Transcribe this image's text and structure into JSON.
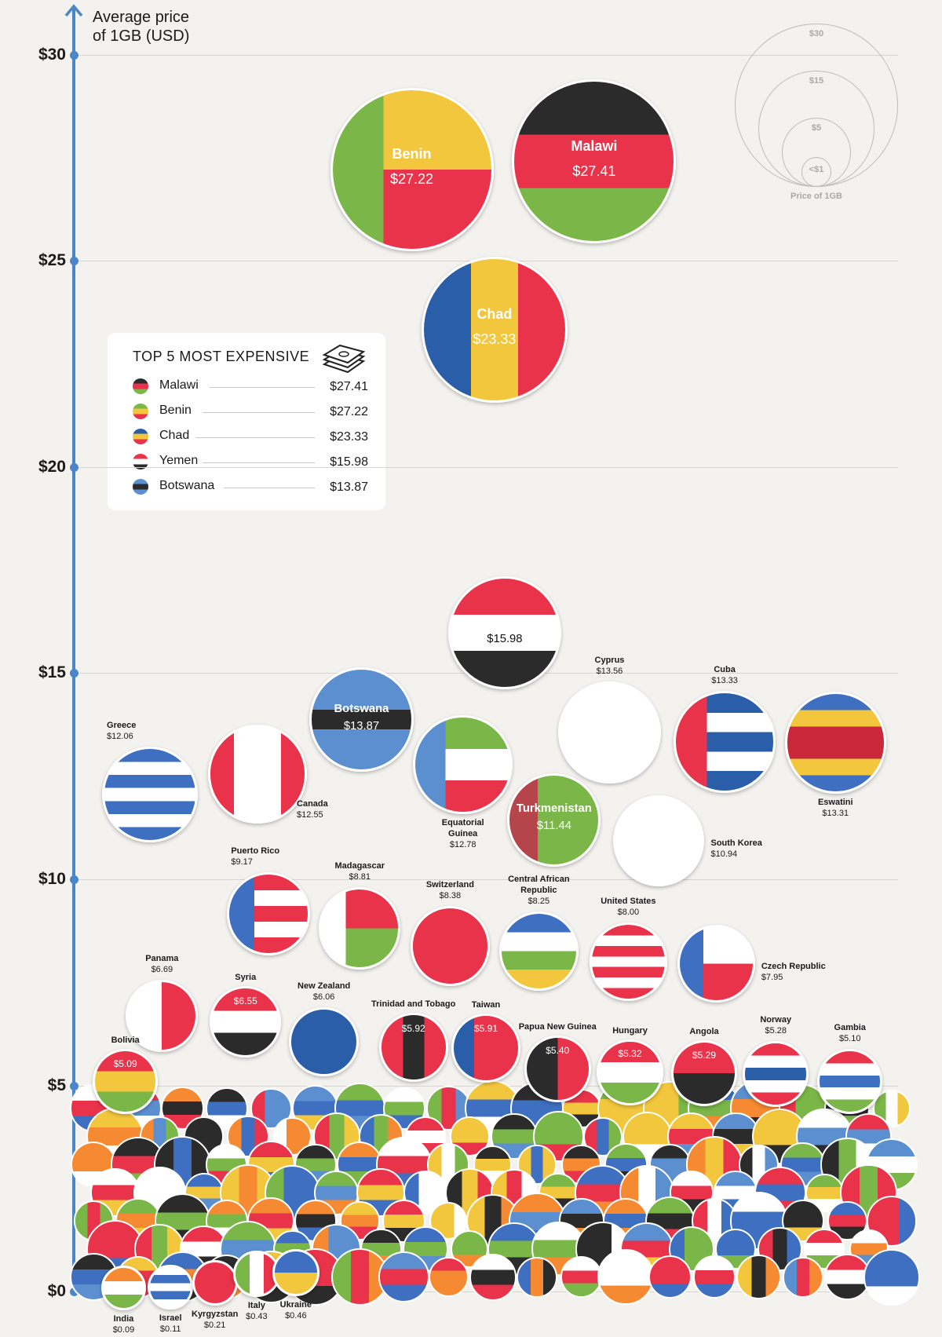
{
  "axis": {
    "title_line1": "Average price",
    "title_line2": "of 1GB (USD)",
    "ticks": [
      "$0",
      "$5",
      "$10",
      "$15",
      "$20",
      "$25",
      "$30"
    ],
    "color": "#4a86c8"
  },
  "size_legend": {
    "title": "Price of 1GB",
    "labels": [
      "$30",
      "$15",
      "$5",
      "<$1"
    ]
  },
  "top5": {
    "title": "TOP 5 MOST EXPENSIVE",
    "icon": "money-stack-icon",
    "rows": [
      {
        "name": "Malawi",
        "value": "$27.41",
        "colors": [
          "#2b2b2b",
          "#e8334a",
          "#7ab648"
        ]
      },
      {
        "name": "Benin",
        "value": "$27.22",
        "colors": [
          "#7ab648",
          "#f2c73d",
          "#e8334a"
        ]
      },
      {
        "name": "Chad",
        "value": "$23.33",
        "colors": [
          "#2b5ea8",
          "#f2c73d",
          "#e8334a"
        ]
      },
      {
        "name": "Yemen",
        "value": "$15.98",
        "colors": [
          "#e8334a",
          "#ffffff",
          "#2b2b2b"
        ]
      },
      {
        "name": "Botswana",
        "value": "$13.87",
        "colors": [
          "#5b8fd0",
          "#2b2b2b",
          "#5b8fd0"
        ]
      }
    ]
  },
  "chart_data": {
    "type": "scatter",
    "title": "",
    "ylabel": "Average price of 1GB (USD)",
    "ylim": [
      0,
      30
    ],
    "yticks": [
      0,
      5,
      10,
      15,
      20,
      25,
      30
    ],
    "grid": true,
    "bubble_size": "price",
    "points": [
      {
        "name": "Malawi",
        "value": 27.41,
        "label": "$27.41",
        "flag": {
          "dir": "h",
          "stripes": [
            "#2b2b2b",
            "#e8334a",
            "#7ab648"
          ]
        }
      },
      {
        "name": "Benin",
        "value": 27.22,
        "label": "$27.22",
        "flag": {
          "dir": "h",
          "stripes": [
            "#f2c73d",
            "#e8334a"
          ],
          "hoist": "#7ab648"
        }
      },
      {
        "name": "Chad",
        "value": 23.33,
        "label": "$23.33",
        "flag": {
          "dir": "v",
          "stripes": [
            "#2b5ea8",
            "#f2c73d",
            "#e8334a"
          ]
        }
      },
      {
        "name": "Yemen",
        "value": 15.98,
        "label": "$15.98",
        "flag": {
          "dir": "h",
          "stripes": [
            "#e8334a",
            "#ffffff",
            "#2b2b2b"
          ]
        }
      },
      {
        "name": "Botswana",
        "value": 13.87,
        "label": "$13.87",
        "flag": {
          "dir": "h",
          "stripes": [
            "#5b8fd0",
            "#5b8fd0",
            "#2b2b2b",
            "#5b8fd0",
            "#5b8fd0"
          ]
        }
      },
      {
        "name": "Cyprus",
        "value": 13.56,
        "label": "$13.56",
        "flag": {
          "dir": "h",
          "stripes": [
            "#ffffff"
          ]
        }
      },
      {
        "name": "Cuba",
        "value": 13.33,
        "label": "$13.33",
        "flag": {
          "dir": "h",
          "stripes": [
            "#2b5ea8",
            "#ffffff",
            "#2b5ea8",
            "#ffffff",
            "#2b5ea8"
          ],
          "hoist": "#e8334a"
        }
      },
      {
        "name": "Eswatini",
        "value": 13.31,
        "label": "$13.31",
        "flag": {
          "dir": "h",
          "stripes": [
            "#3e6fc0",
            "#f2c73d",
            "#c8283a",
            "#c8283a",
            "#f2c73d",
            "#3e6fc0"
          ]
        }
      },
      {
        "name": "Greece",
        "value": 12.06,
        "label": "$12.06",
        "flag": {
          "dir": "h",
          "stripes": [
            "#3e6fc0",
            "#ffffff",
            "#3e6fc0",
            "#ffffff",
            "#3e6fc0",
            "#ffffff",
            "#3e6fc0"
          ]
        }
      },
      {
        "name": "Canada",
        "value": 12.55,
        "label": "$12.55",
        "flag": {
          "dir": "v",
          "stripes": [
            "#e8334a",
            "#ffffff",
            "#ffffff",
            "#e8334a"
          ]
        }
      },
      {
        "name": "Equatorial Guinea",
        "value": 12.78,
        "label": "$12.78",
        "flag": {
          "dir": "h",
          "stripes": [
            "#7ab648",
            "#ffffff",
            "#e8334a"
          ],
          "hoist": "#5b8fd0"
        }
      },
      {
        "name": "Turkmenistan",
        "value": 11.44,
        "label": "$11.44",
        "flag": {
          "dir": "h",
          "stripes": [
            "#7ab648"
          ],
          "hoist": "#b5454a"
        }
      },
      {
        "name": "South Korea",
        "value": 10.94,
        "label": "$10.94",
        "flag": {
          "dir": "h",
          "stripes": [
            "#ffffff"
          ]
        }
      },
      {
        "name": "Puerto Rico",
        "value": 9.17,
        "label": "$9.17",
        "flag": {
          "dir": "h",
          "stripes": [
            "#e8334a",
            "#ffffff",
            "#e8334a",
            "#ffffff",
            "#e8334a"
          ],
          "hoist": "#3e6fc0"
        }
      },
      {
        "name": "Madagascar",
        "value": 8.81,
        "label": "$8.81",
        "flag": {
          "dir": "h",
          "stripes": [
            "#e8334a",
            "#7ab648"
          ],
          "hoist": "#ffffff"
        }
      },
      {
        "name": "Switzerland",
        "value": 8.38,
        "label": "$8.38",
        "flag": {
          "dir": "h",
          "stripes": [
            "#e8334a"
          ]
        }
      },
      {
        "name": "Central African Republic",
        "value": 8.25,
        "label": "$8.25",
        "flag": {
          "dir": "h",
          "stripes": [
            "#3e6fc0",
            "#ffffff",
            "#7ab648",
            "#f2c73d"
          ]
        }
      },
      {
        "name": "United States",
        "value": 8.0,
        "label": "$8.00",
        "flag": {
          "dir": "h",
          "stripes": [
            "#e8334a",
            "#ffffff",
            "#e8334a",
            "#ffffff",
            "#e8334a",
            "#ffffff",
            "#e8334a"
          ]
        }
      },
      {
        "name": "Czech Republic",
        "value": 7.95,
        "label": "$7.95",
        "flag": {
          "dir": "h",
          "stripes": [
            "#ffffff",
            "#e8334a"
          ],
          "hoist": "#3e6fc0"
        }
      },
      {
        "name": "Panama",
        "value": 6.69,
        "label": "$6.69",
        "flag": {
          "dir": "v",
          "stripes": [
            "#ffffff",
            "#e8334a"
          ]
        }
      },
      {
        "name": "Syria",
        "value": 6.55,
        "label": "$6.55",
        "flag": {
          "dir": "h",
          "stripes": [
            "#e8334a",
            "#ffffff",
            "#2b2b2b"
          ]
        }
      },
      {
        "name": "New Zealand",
        "value": 6.06,
        "label": "$6.06",
        "flag": {
          "dir": "h",
          "stripes": [
            "#2b5ea8"
          ]
        }
      },
      {
        "name": "Trinidad and Tobago",
        "value": 5.92,
        "label": "$5.92",
        "flag": {
          "dir": "v",
          "stripes": [
            "#e8334a",
            "#2b2b2b",
            "#e8334a"
          ]
        }
      },
      {
        "name": "Taiwan",
        "value": 5.91,
        "label": "$5.91",
        "flag": {
          "dir": "h",
          "stripes": [
            "#e8334a"
          ],
          "hoist": "#2b5ea8"
        }
      },
      {
        "name": "Papua New Guinea",
        "value": 5.4,
        "label": "$5.40",
        "flag": {
          "dir": "v",
          "stripes": [
            "#2b2b2b",
            "#e8334a"
          ]
        }
      },
      {
        "name": "Hungary",
        "value": 5.32,
        "label": "$5.32",
        "flag": {
          "dir": "h",
          "stripes": [
            "#e8334a",
            "#ffffff",
            "#7ab648"
          ]
        }
      },
      {
        "name": "Angola",
        "value": 5.29,
        "label": "$5.29",
        "flag": {
          "dir": "h",
          "stripes": [
            "#e8334a",
            "#2b2b2b"
          ]
        }
      },
      {
        "name": "Norway",
        "value": 5.28,
        "label": "$5.28",
        "flag": {
          "dir": "h",
          "stripes": [
            "#e8334a",
            "#ffffff",
            "#2b5ea8",
            "#ffffff",
            "#e8334a"
          ]
        }
      },
      {
        "name": "Gambia",
        "value": 5.1,
        "label": "$5.10",
        "flag": {
          "dir": "h",
          "stripes": [
            "#e8334a",
            "#ffffff",
            "#3e6fc0",
            "#ffffff",
            "#7ab648"
          ]
        }
      },
      {
        "name": "Bolivia",
        "value": 5.09,
        "label": "$5.09",
        "flag": {
          "dir": "h",
          "stripes": [
            "#e8334a",
            "#f2c73d",
            "#7ab648"
          ]
        }
      },
      {
        "name": "India",
        "value": 0.09,
        "label": "$0.09",
        "flag": {
          "dir": "h",
          "stripes": [
            "#f58a32",
            "#ffffff",
            "#7ab648"
          ]
        }
      },
      {
        "name": "Israel",
        "value": 0.11,
        "label": "$0.11",
        "flag": {
          "dir": "h",
          "stripes": [
            "#ffffff",
            "#3e6fc0",
            "#ffffff",
            "#3e6fc0",
            "#ffffff"
          ]
        }
      },
      {
        "name": "Kyrgyzstan",
        "value": 0.21,
        "label": "$0.21",
        "flag": {
          "dir": "h",
          "stripes": [
            "#e8334a"
          ]
        }
      },
      {
        "name": "Italy",
        "value": 0.43,
        "label": "$0.43",
        "flag": {
          "dir": "v",
          "stripes": [
            "#7ab648",
            "#ffffff",
            "#e8334a"
          ]
        }
      },
      {
        "name": "Ukraine",
        "value": 0.46,
        "label": "$0.46",
        "flag": {
          "dir": "h",
          "stripes": [
            "#3e6fc0",
            "#f2c73d"
          ]
        }
      }
    ]
  }
}
